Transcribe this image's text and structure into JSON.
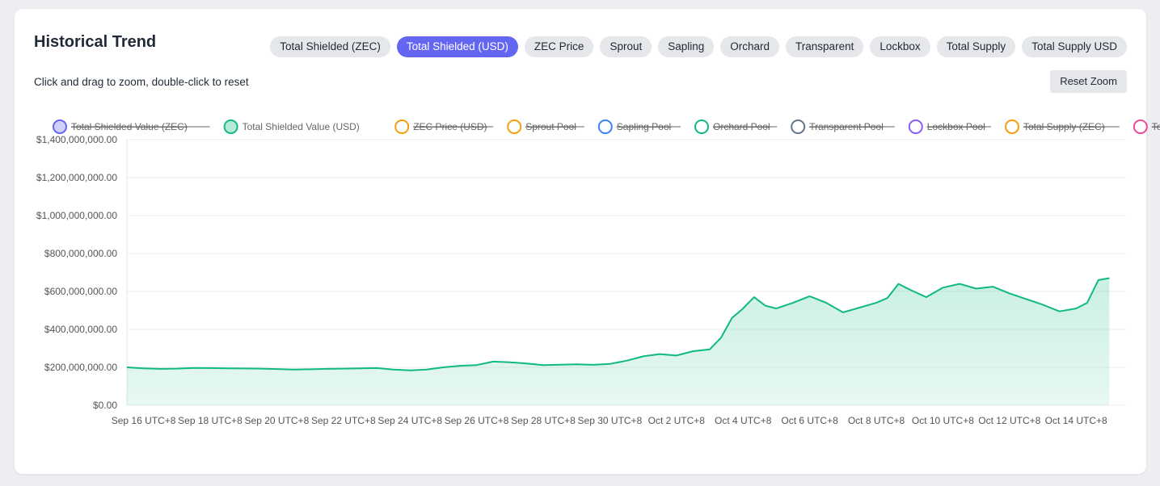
{
  "header": {
    "title": "Historical Trend",
    "hint": "Click and drag to zoom, double-click to reset",
    "reset_label": "Reset Zoom"
  },
  "tabs": [
    {
      "label": "Total Shielded (ZEC)",
      "active": false
    },
    {
      "label": "Total Shielded (USD)",
      "active": true
    },
    {
      "label": "ZEC Price",
      "active": false
    },
    {
      "label": "Sprout",
      "active": false
    },
    {
      "label": "Sapling",
      "active": false
    },
    {
      "label": "Orchard",
      "active": false
    },
    {
      "label": "Transparent",
      "active": false
    },
    {
      "label": "Lockbox",
      "active": false
    },
    {
      "label": "Total Supply",
      "active": false
    },
    {
      "label": "Total Supply USD",
      "active": false
    }
  ],
  "chart_data": {
    "type": "area",
    "legend_position": "top",
    "grid": true,
    "ylim": [
      0,
      1400000000
    ],
    "y_ticks": [
      "$0.00",
      "$200,000,000.00",
      "$400,000,000.00",
      "$600,000,000.00",
      "$800,000,000.00",
      "$1,000,000,000.00",
      "$1,200,000,000.00",
      "$1,400,000,000.00"
    ],
    "y_tick_values": [
      0,
      200000000,
      400000000,
      600000000,
      800000000,
      1000000000,
      1200000000,
      1400000000
    ],
    "xlim": [
      "2025-09-15T12:00",
      "2025-10-15T12:00"
    ],
    "x_ticks": [
      "Sep 16 UTC+8",
      "Sep 18 UTC+8",
      "Sep 20 UTC+8",
      "Sep 22 UTC+8",
      "Sep 24 UTC+8",
      "Sep 26 UTC+8",
      "Sep 28 UTC+8",
      "Sep 30 UTC+8",
      "Oct 2 UTC+8",
      "Oct 4 UTC+8",
      "Oct 6 UTC+8",
      "Oct 8 UTC+8",
      "Oct 10 UTC+8",
      "Oct 12 UTC+8",
      "Oct 14 UTC+8"
    ],
    "x_tick_dates": [
      "2025-09-16",
      "2025-09-18",
      "2025-09-20",
      "2025-09-22",
      "2025-09-24",
      "2025-09-26",
      "2025-09-28",
      "2025-09-30",
      "2025-10-02",
      "2025-10-04",
      "2025-10-06",
      "2025-10-08",
      "2025-10-10",
      "2025-10-12",
      "2025-10-14"
    ],
    "legend": [
      {
        "label": "Total Shielded Value (ZEC)",
        "color": "#6366f1",
        "hidden": false,
        "struck": true,
        "filled": true
      },
      {
        "label": "Total Shielded Value (USD)",
        "color": "#10b981",
        "hidden": false,
        "struck": false,
        "filled": true
      },
      {
        "label": "ZEC Price (USD)",
        "color": "#f59e0b",
        "hidden": true,
        "struck": true,
        "filled": false
      },
      {
        "label": "Sprout Pool",
        "color": "#f59e0b",
        "hidden": true,
        "struck": true,
        "filled": false
      },
      {
        "label": "Sapling Pool",
        "color": "#3b82f6",
        "hidden": true,
        "struck": true,
        "filled": false
      },
      {
        "label": "Orchard Pool",
        "color": "#10b981",
        "hidden": true,
        "struck": true,
        "filled": false
      },
      {
        "label": "Transparent Pool",
        "color": "#64748b",
        "hidden": true,
        "struck": true,
        "filled": false
      },
      {
        "label": "Lockbox Pool",
        "color": "#8b5cf6",
        "hidden": true,
        "struck": true,
        "filled": false
      },
      {
        "label": "Total Supply (ZEC)",
        "color": "#f59e0b",
        "hidden": true,
        "struck": true,
        "filled": false
      },
      {
        "label": "Total Supply (USD)",
        "color": "#ec4899",
        "hidden": true,
        "struck": true,
        "filled": false
      }
    ],
    "series": [
      {
        "name": "Total Shielded Value (USD)",
        "color": "#10b981",
        "points": [
          [
            "2025-09-15T12:00",
            200000000
          ],
          [
            "2025-09-16T00:00",
            195000000
          ],
          [
            "2025-09-16T12:00",
            192000000
          ],
          [
            "2025-09-17T00:00",
            193000000
          ],
          [
            "2025-09-17T12:00",
            197000000
          ],
          [
            "2025-09-18T00:00",
            196000000
          ],
          [
            "2025-09-18T12:00",
            195000000
          ],
          [
            "2025-09-19T00:00",
            194000000
          ],
          [
            "2025-09-19T12:00",
            193000000
          ],
          [
            "2025-09-20T00:00",
            191000000
          ],
          [
            "2025-09-20T12:00",
            188000000
          ],
          [
            "2025-09-21T00:00",
            190000000
          ],
          [
            "2025-09-21T12:00",
            192000000
          ],
          [
            "2025-09-22T00:00",
            193000000
          ],
          [
            "2025-09-22T12:00",
            195000000
          ],
          [
            "2025-09-23T00:00",
            196000000
          ],
          [
            "2025-09-23T12:00",
            188000000
          ],
          [
            "2025-09-24T00:00",
            184000000
          ],
          [
            "2025-09-24T12:00",
            188000000
          ],
          [
            "2025-09-25T00:00",
            200000000
          ],
          [
            "2025-09-25T12:00",
            208000000
          ],
          [
            "2025-09-26T00:00",
            212000000
          ],
          [
            "2025-09-26T12:00",
            230000000
          ],
          [
            "2025-09-27T00:00",
            227000000
          ],
          [
            "2025-09-27T12:00",
            220000000
          ],
          [
            "2025-09-28T00:00",
            212000000
          ],
          [
            "2025-09-28T12:00",
            214000000
          ],
          [
            "2025-09-29T00:00",
            216000000
          ],
          [
            "2025-09-29T12:00",
            213000000
          ],
          [
            "2025-09-30T00:00",
            218000000
          ],
          [
            "2025-09-30T12:00",
            235000000
          ],
          [
            "2025-10-01T00:00",
            258000000
          ],
          [
            "2025-10-01T12:00",
            270000000
          ],
          [
            "2025-10-02T00:00",
            262000000
          ],
          [
            "2025-10-02T12:00",
            285000000
          ],
          [
            "2025-10-03T00:00",
            295000000
          ],
          [
            "2025-10-03T08:00",
            355000000
          ],
          [
            "2025-10-03T16:00",
            460000000
          ],
          [
            "2025-10-04T00:00",
            510000000
          ],
          [
            "2025-10-04T08:00",
            570000000
          ],
          [
            "2025-10-04T16:00",
            525000000
          ],
          [
            "2025-10-05T00:00",
            510000000
          ],
          [
            "2025-10-05T12:00",
            540000000
          ],
          [
            "2025-10-06T00:00",
            575000000
          ],
          [
            "2025-10-06T12:00",
            540000000
          ],
          [
            "2025-10-07T00:00",
            490000000
          ],
          [
            "2025-10-07T12:00",
            515000000
          ],
          [
            "2025-10-08T00:00",
            540000000
          ],
          [
            "2025-10-08T08:00",
            565000000
          ],
          [
            "2025-10-08T16:00",
            640000000
          ],
          [
            "2025-10-09T00:00",
            610000000
          ],
          [
            "2025-10-09T12:00",
            570000000
          ],
          [
            "2025-10-10T00:00",
            620000000
          ],
          [
            "2025-10-10T12:00",
            640000000
          ],
          [
            "2025-10-11T00:00",
            615000000
          ],
          [
            "2025-10-11T12:00",
            625000000
          ],
          [
            "2025-10-12T00:00",
            590000000
          ],
          [
            "2025-10-12T12:00",
            560000000
          ],
          [
            "2025-10-13T00:00",
            530000000
          ],
          [
            "2025-10-13T12:00",
            495000000
          ],
          [
            "2025-10-14T00:00",
            510000000
          ],
          [
            "2025-10-14T08:00",
            540000000
          ],
          [
            "2025-10-14T16:00",
            660000000
          ],
          [
            "2025-10-15T00:00",
            670000000
          ]
        ]
      }
    ]
  }
}
